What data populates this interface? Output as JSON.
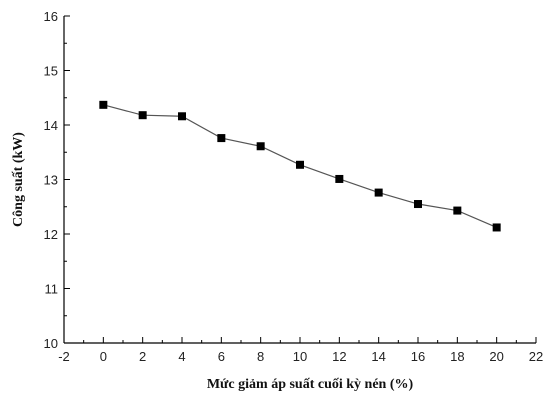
{
  "chart_data": {
    "type": "line",
    "title": "",
    "xlabel": "Mức giảm áp suất cuối kỳ nén (%)",
    "ylabel": "Công suất (kW)",
    "xlim": [
      -2,
      22
    ],
    "ylim": [
      10,
      16
    ],
    "xticks": [
      -2,
      0,
      2,
      4,
      6,
      8,
      10,
      12,
      14,
      16,
      18,
      20,
      22
    ],
    "yticks": [
      10,
      11,
      12,
      13,
      14,
      15,
      16
    ],
    "grid": false,
    "legend": "none",
    "colors": {
      "line": "#555555",
      "marker": "#000000"
    },
    "series": [
      {
        "x": [
          0,
          2,
          4,
          6,
          8,
          10,
          12,
          14,
          16,
          18,
          20
        ],
        "y": [
          14.37,
          14.18,
          14.16,
          13.76,
          13.61,
          13.27,
          13.01,
          12.76,
          12.55,
          12.43,
          12.12
        ]
      }
    ]
  }
}
